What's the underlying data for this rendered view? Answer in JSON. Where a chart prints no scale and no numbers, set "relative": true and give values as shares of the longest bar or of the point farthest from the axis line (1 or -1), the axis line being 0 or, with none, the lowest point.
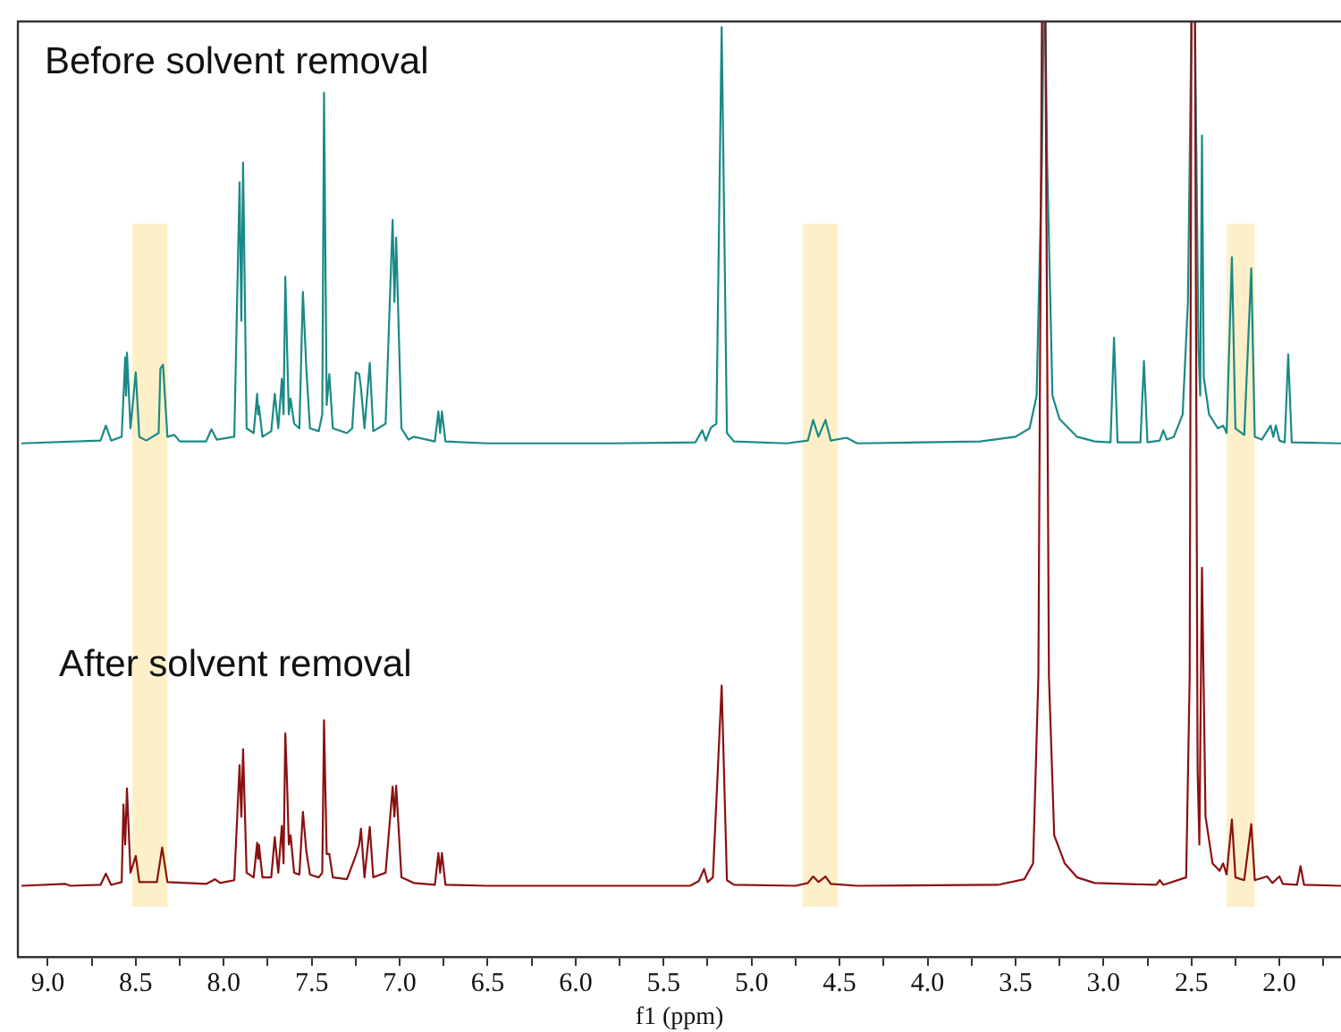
{
  "chart_data": {
    "type": "line",
    "xlabel": "f1 (ppm)",
    "relative": true,
    "legend": false,
    "grid": false,
    "marker": "none",
    "line_style": "solid",
    "xlim": [
      9.17,
      1.65
    ],
    "xticks": [
      {
        "value": 9,
        "label": "9.0"
      },
      {
        "value": 8.75,
        "label": null
      },
      {
        "value": 8.5,
        "label": "8.5"
      },
      {
        "value": 8.25,
        "label": null
      },
      {
        "value": 8,
        "label": "8.0"
      },
      {
        "value": 7.75,
        "label": null
      },
      {
        "value": 7.5,
        "label": "7.5"
      },
      {
        "value": 7.25,
        "label": null
      },
      {
        "value": 7,
        "label": "7.0"
      },
      {
        "value": 6.75,
        "label": null
      },
      {
        "value": 6.5,
        "label": "6.5"
      },
      {
        "value": 6.25,
        "label": null
      },
      {
        "value": 6,
        "label": "6.0"
      },
      {
        "value": 5.75,
        "label": null
      },
      {
        "value": 5.5,
        "label": "5.5"
      },
      {
        "value": 5.25,
        "label": null
      },
      {
        "value": 5,
        "label": "5.0"
      },
      {
        "value": 4.75,
        "label": null
      },
      {
        "value": 4.5,
        "label": "4.5"
      },
      {
        "value": 4.25,
        "label": null
      },
      {
        "value": 4,
        "label": "4.0"
      },
      {
        "value": 3.75,
        "label": null
      },
      {
        "value": 3.5,
        "label": "3.5"
      },
      {
        "value": 3.25,
        "label": null
      },
      {
        "value": 3,
        "label": "3.0"
      },
      {
        "value": 2.75,
        "label": null
      },
      {
        "value": 2.5,
        "label": "2.5"
      },
      {
        "value": 2.25,
        "label": null
      },
      {
        "value": 2,
        "label": "2.0"
      },
      {
        "value": 1.75,
        "label": null
      }
    ],
    "bands": [
      {
        "axis": "x",
        "from": 8.52,
        "to": 8.32,
        "color": "#fdf0c8"
      },
      {
        "axis": "x",
        "from": 4.71,
        "to": 4.51,
        "color": "#fdf0c8"
      },
      {
        "axis": "x",
        "from": 2.3,
        "to": 2.14,
        "color": "#fdf0c8"
      }
    ],
    "series": [
      {
        "name": "Before solvent removal",
        "color": "#1a8a86",
        "x": [
          9.15,
          8.7,
          8.67,
          8.64,
          8.58,
          8.56,
          8.555,
          8.55,
          8.53,
          8.5,
          8.48,
          8.44,
          8.37,
          8.36,
          8.345,
          8.32,
          8.28,
          8.25,
          8.1,
          8.07,
          8.04,
          7.94,
          7.91,
          7.9,
          7.89,
          7.87,
          7.83,
          7.81,
          7.805,
          7.8,
          7.78,
          7.73,
          7.71,
          7.69,
          7.67,
          7.66,
          7.65,
          7.64,
          7.63,
          7.62,
          7.6,
          7.57,
          7.55,
          7.53,
          7.51,
          7.46,
          7.44,
          7.43,
          7.415,
          7.4,
          7.38,
          7.3,
          7.27,
          7.25,
          7.23,
          7.22,
          7.2,
          7.17,
          7.15,
          7.08,
          7.04,
          7.03,
          7.02,
          6.99,
          6.95,
          6.92,
          6.8,
          6.78,
          6.77,
          6.76,
          6.74,
          6.5,
          5.8,
          5.32,
          5.28,
          5.26,
          5.23,
          5.2,
          5.17,
          5.14,
          5.1,
          4.8,
          4.68,
          4.65,
          4.62,
          4.58,
          4.55,
          4.46,
          4.4,
          3.7,
          3.5,
          3.42,
          3.38,
          3.35,
          3.34,
          3.33,
          3.32,
          3.29,
          3.25,
          3.15,
          3.05,
          2.96,
          2.94,
          2.92,
          2.79,
          2.77,
          2.75,
          2.68,
          2.66,
          2.64,
          2.6,
          2.55,
          2.52,
          2.5,
          2.48,
          2.46,
          2.45,
          2.44,
          2.43,
          2.4,
          2.35,
          2.32,
          2.3,
          2.27,
          2.25,
          2.2,
          2.16,
          2.14,
          2.1,
          2.05,
          2.035,
          2.02,
          2.0,
          1.97,
          1.95,
          1.93,
          1.65
        ],
        "values": [
          0.549,
          0.552,
          0.568,
          0.552,
          0.556,
          0.641,
          0.6,
          0.646,
          0.565,
          0.625,
          0.556,
          0.552,
          0.56,
          0.629,
          0.633,
          0.556,
          0.558,
          0.551,
          0.551,
          0.564,
          0.553,
          0.556,
          0.828,
          0.68,
          0.849,
          0.565,
          0.56,
          0.602,
          0.58,
          0.589,
          0.556,
          0.562,
          0.602,
          0.565,
          0.618,
          0.58,
          0.727,
          0.65,
          0.58,
          0.597,
          0.57,
          0.565,
          0.711,
          0.627,
          0.565,
          0.562,
          0.58,
          0.924,
          0.59,
          0.623,
          0.565,
          0.56,
          0.565,
          0.625,
          0.623,
          0.608,
          0.565,
          0.635,
          0.562,
          0.57,
          0.788,
          0.7,
          0.769,
          0.565,
          0.553,
          0.556,
          0.551,
          0.583,
          0.56,
          0.583,
          0.551,
          0.549,
          0.549,
          0.55,
          0.563,
          0.552,
          0.566,
          0.57,
          0.994,
          0.56,
          0.551,
          0.549,
          0.552,
          0.574,
          0.556,
          0.574,
          0.552,
          0.555,
          0.549,
          0.551,
          0.556,
          0.565,
          0.6,
          0.85,
          1,
          1,
          0.85,
          0.6,
          0.575,
          0.556,
          0.551,
          0.55,
          0.662,
          0.55,
          0.55,
          0.637,
          0.55,
          0.552,
          0.563,
          0.553,
          0.556,
          0.58,
          0.7,
          1,
          1,
          0.65,
          0.6,
          0.878,
          0.62,
          0.58,
          0.565,
          0.568,
          0.56,
          0.748,
          0.565,
          0.558,
          0.736,
          0.556,
          0.553,
          0.568,
          0.556,
          0.568,
          0.552,
          0.55,
          0.644,
          0.55,
          0.549
        ]
      },
      {
        "name": "After solvent removal",
        "color": "#8b1010",
        "x": [
          9.15,
          8.9,
          8.87,
          8.7,
          8.67,
          8.64,
          8.58,
          8.57,
          8.56,
          8.55,
          8.53,
          8.5,
          8.48,
          8.38,
          8.35,
          8.32,
          8.1,
          8.05,
          8.02,
          7.94,
          7.91,
          7.9,
          7.89,
          7.87,
          7.83,
          7.81,
          7.805,
          7.8,
          7.78,
          7.73,
          7.71,
          7.69,
          7.67,
          7.66,
          7.65,
          7.64,
          7.63,
          7.62,
          7.6,
          7.57,
          7.55,
          7.53,
          7.51,
          7.46,
          7.44,
          7.43,
          7.415,
          7.4,
          7.38,
          7.3,
          7.25,
          7.23,
          7.22,
          7.2,
          7.17,
          7.15,
          7.08,
          7.04,
          7.03,
          7.02,
          6.99,
          6.92,
          6.8,
          6.78,
          6.77,
          6.76,
          6.74,
          6.5,
          5.35,
          5.3,
          5.27,
          5.25,
          5.22,
          5.17,
          5.14,
          5.1,
          4.75,
          4.68,
          4.65,
          4.62,
          4.58,
          4.55,
          4.4,
          3.6,
          3.45,
          3.4,
          3.37,
          3.35,
          3.33,
          3.31,
          3.28,
          3.22,
          3.15,
          3.05,
          2.7,
          2.68,
          2.66,
          2.53,
          2.51,
          2.5,
          2.48,
          2.465,
          2.455,
          2.44,
          2.42,
          2.38,
          2.34,
          2.32,
          2.3,
          2.27,
          2.25,
          2.2,
          2.16,
          2.14,
          2.07,
          2.04,
          2.0,
          1.98,
          1.9,
          1.88,
          1.86,
          1.65
        ],
        "values": [
          0.076,
          0.078,
          0.076,
          0.077,
          0.089,
          0.077,
          0.08,
          0.163,
          0.12,
          0.18,
          0.09,
          0.108,
          0.08,
          0.08,
          0.117,
          0.08,
          0.078,
          0.083,
          0.079,
          0.082,
          0.205,
          0.15,
          0.222,
          0.09,
          0.085,
          0.122,
          0.105,
          0.12,
          0.085,
          0.085,
          0.128,
          0.09,
          0.14,
          0.1,
          0.239,
          0.185,
          0.12,
          0.13,
          0.09,
          0.088,
          0.155,
          0.112,
          0.088,
          0.085,
          0.09,
          0.253,
          0.11,
          0.11,
          0.085,
          0.083,
          0.108,
          0.12,
          0.137,
          0.085,
          0.139,
          0.085,
          0.09,
          0.182,
          0.15,
          0.183,
          0.085,
          0.079,
          0.077,
          0.111,
          0.09,
          0.111,
          0.077,
          0.076,
          0.076,
          0.081,
          0.094,
          0.08,
          0.085,
          0.29,
          0.082,
          0.077,
          0.076,
          0.079,
          0.086,
          0.08,
          0.086,
          0.078,
          0.076,
          0.077,
          0.083,
          0.1,
          0.3,
          1,
          1,
          0.3,
          0.13,
          0.1,
          0.085,
          0.079,
          0.077,
          0.082,
          0.077,
          0.085,
          0.3,
          1,
          1,
          0.2,
          0.12,
          0.416,
          0.15,
          0.1,
          0.092,
          0.1,
          0.088,
          0.147,
          0.085,
          0.082,
          0.142,
          0.082,
          0.086,
          0.079,
          0.086,
          0.078,
          0.077,
          0.097,
          0.077,
          0.076
        ]
      }
    ]
  }
}
